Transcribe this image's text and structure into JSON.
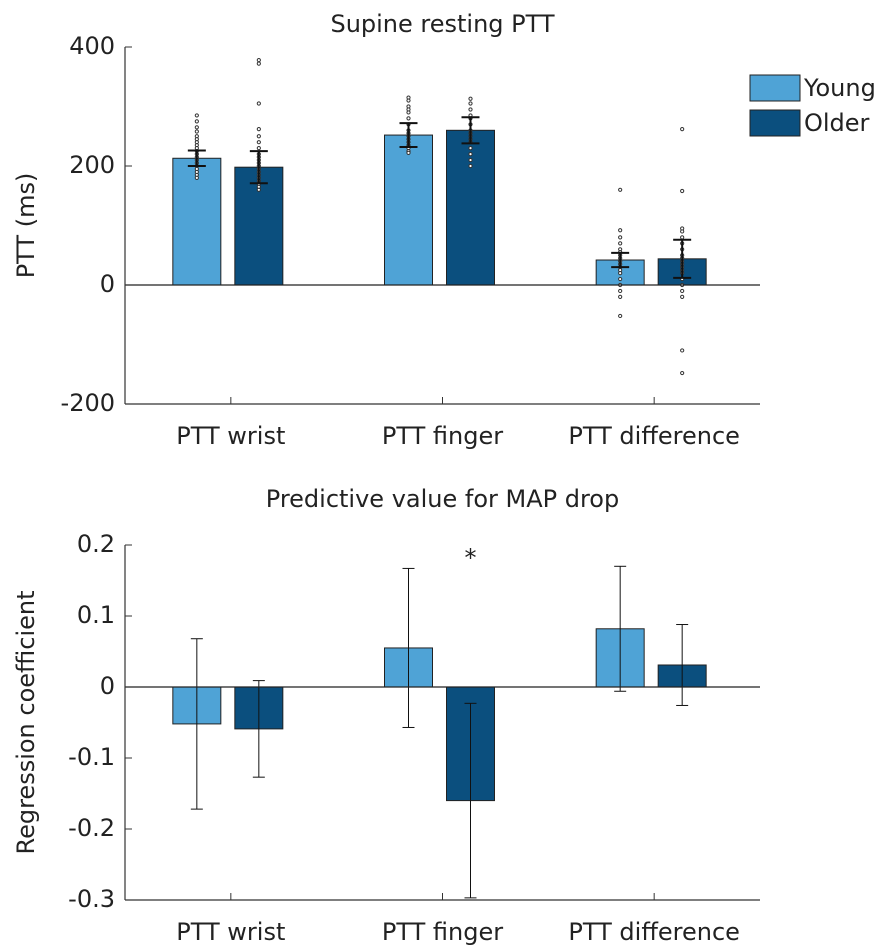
{
  "chart_data": [
    {
      "type": "bar",
      "title": "Supine resting PTT",
      "ylabel": "PTT (ms)",
      "categories": [
        "PTT wrist",
        "PTT finger",
        "PTT difference"
      ],
      "ylim": [
        -200,
        400
      ],
      "yticks": [
        -200,
        0,
        200,
        400
      ],
      "legend": "upper right",
      "series": [
        {
          "name": "Young",
          "color": "#4fa3d6",
          "values": [
            213,
            252,
            42
          ],
          "errors": [
            13,
            20,
            12
          ],
          "points": [
            [
              285,
              275,
              265,
              258,
              250,
              245,
              240,
              235,
              230,
              225,
              220,
              215,
              210,
              205,
              200,
              195,
              190,
              185,
              180
            ],
            [
              315,
              310,
              300,
              295,
              290,
              280,
              270,
              260,
              255,
              250,
              245,
              240,
              235,
              230,
              225,
              222
            ],
            [
              160,
              92,
              80,
              70,
              60,
              55,
              50,
              45,
              40,
              35,
              30,
              25,
              20,
              10,
              0,
              -10,
              -20,
              -52
            ]
          ]
        },
        {
          "name": "Older",
          "color": "#0b4f7e",
          "values": [
            198,
            260,
            44
          ],
          "errors": [
            27,
            22,
            32
          ],
          "points": [
            [
              378,
              372,
              305,
              262,
              250,
              240,
              230,
              220,
              215,
              210,
              205,
              200,
              195,
              190,
              185,
              180,
              175,
              170,
              165,
              160
            ],
            [
              313,
              305,
              295,
              285,
              280,
              270,
              260,
              255,
              250,
              245,
              240,
              230,
              220,
              210,
              200
            ],
            [
              262,
              158,
              95,
              90,
              80,
              70,
              60,
              50,
              45,
              40,
              35,
              30,
              25,
              20,
              10,
              0,
              -10,
              -20,
              -110,
              -148
            ]
          ]
        }
      ]
    },
    {
      "type": "bar",
      "title": "Predictive value for MAP drop",
      "ylabel": "Regression coefficient",
      "categories": [
        "PTT wrist",
        "PTT finger",
        "PTT difference"
      ],
      "ylim": [
        -0.3,
        0.2
      ],
      "yticks": [
        -0.3,
        -0.2,
        -0.1,
        0,
        0.1,
        0.2
      ],
      "annotations": [
        {
          "text": "*",
          "category": 1,
          "series": 1
        }
      ],
      "series": [
        {
          "color": "#4fa3d6",
          "values": [
            -0.052,
            0.055,
            0.082
          ],
          "errors": [
            0.12,
            0.112,
            0.088
          ]
        },
        {
          "color": "#0b4f7e",
          "values": [
            -0.059,
            -0.16,
            0.031
          ],
          "errors": [
            0.068,
            0.137,
            0.057
          ]
        }
      ]
    }
  ]
}
